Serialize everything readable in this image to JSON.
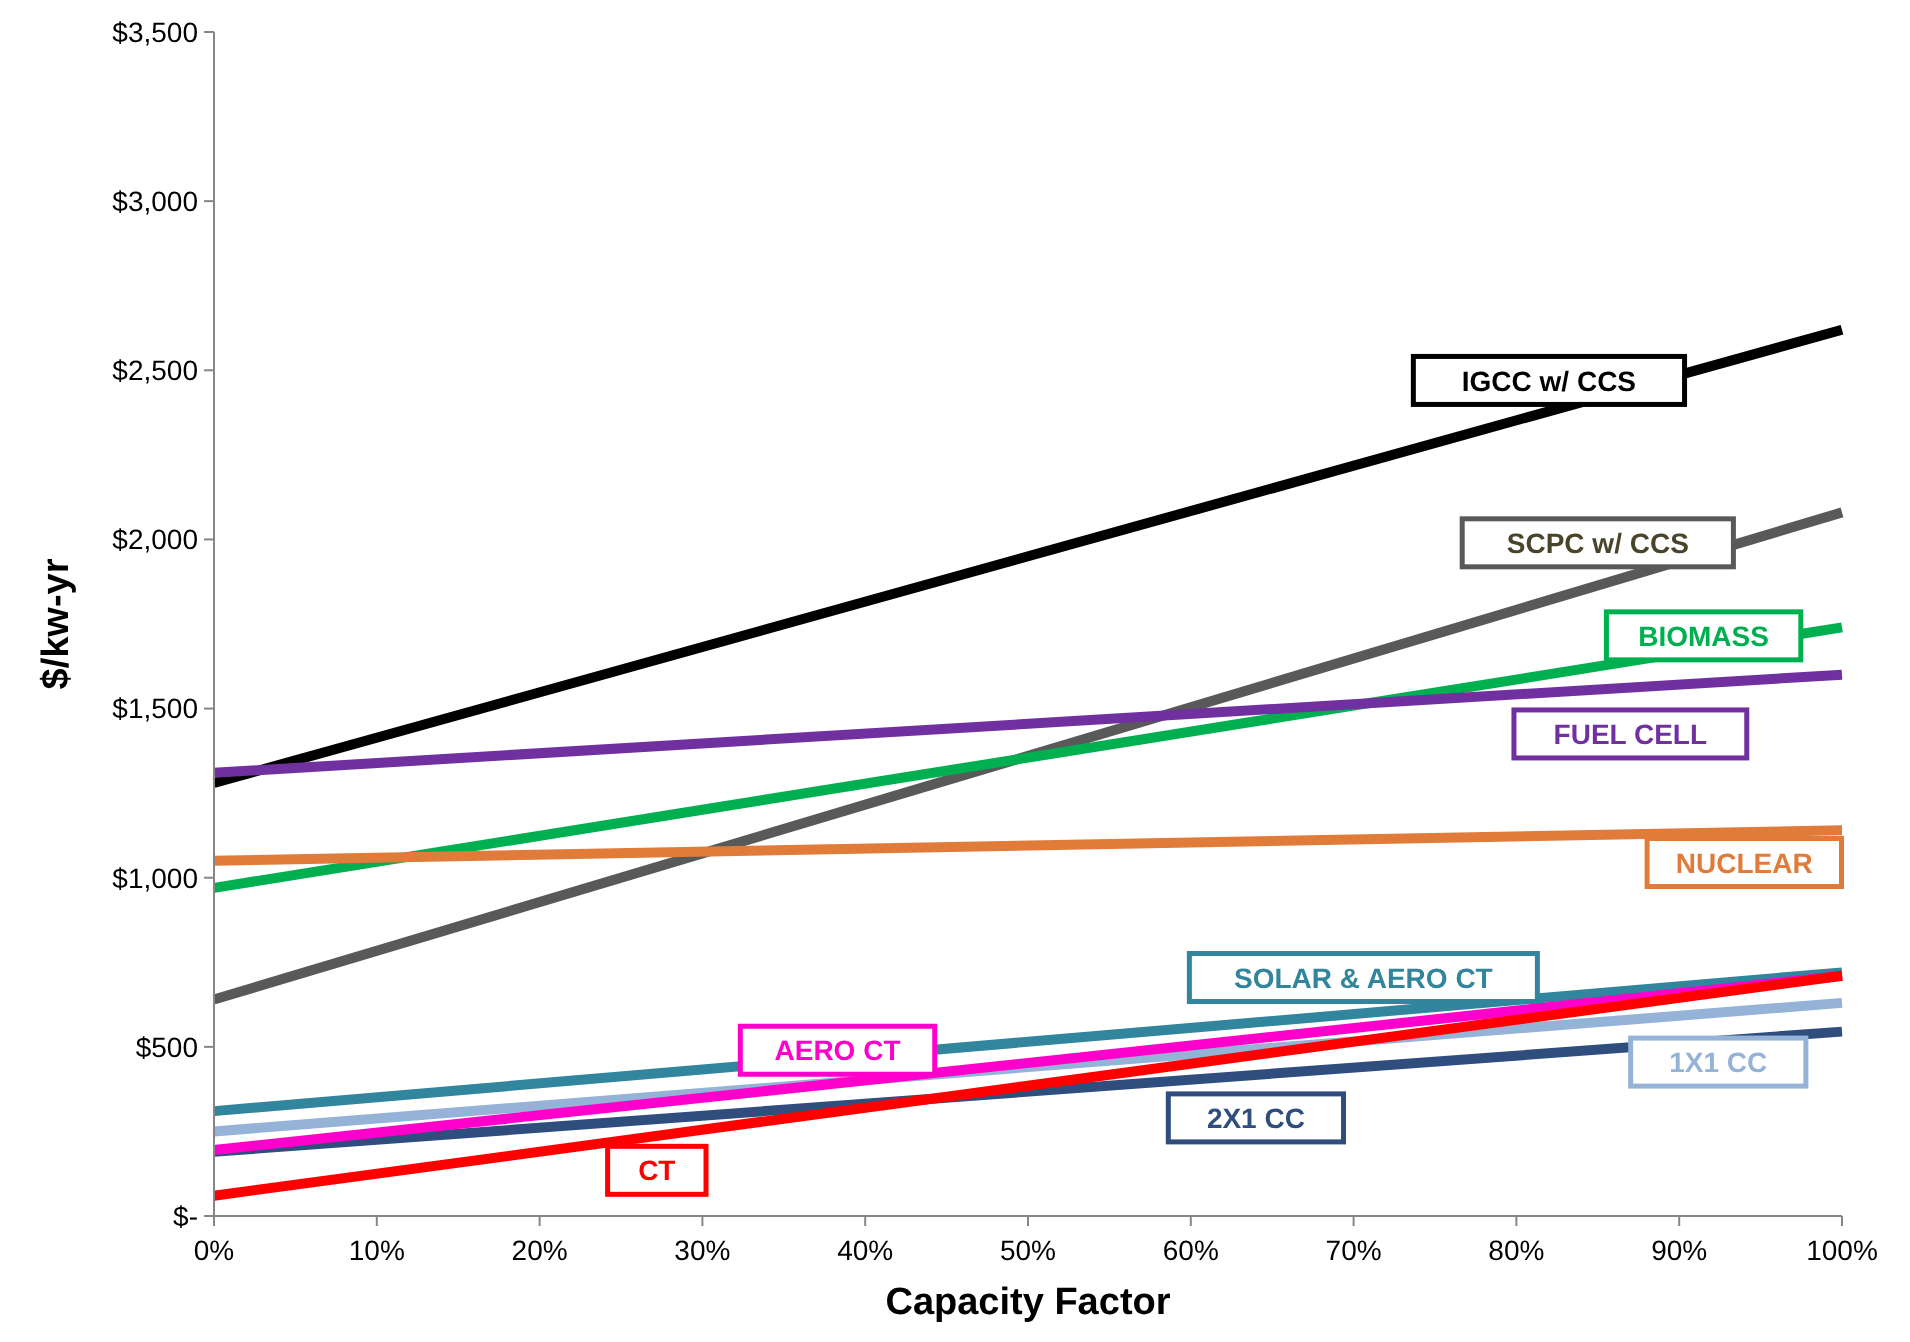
{
  "chart_data": {
    "type": "line",
    "xlabel": "Capacity Factor",
    "ylabel": "$/kw-yr",
    "x": [
      0,
      100
    ],
    "xlim": [
      0,
      100
    ],
    "xticks": [
      {
        "value": 0,
        "label": "0%"
      },
      {
        "value": 10,
        "label": "10%"
      },
      {
        "value": 20,
        "label": "20%"
      },
      {
        "value": 30,
        "label": "30%"
      },
      {
        "value": 40,
        "label": "40%"
      },
      {
        "value": 50,
        "label": "50%"
      },
      {
        "value": 60,
        "label": "60%"
      },
      {
        "value": 70,
        "label": "70%"
      },
      {
        "value": 80,
        "label": "80%"
      },
      {
        "value": 90,
        "label": "90%"
      },
      {
        "value": 100,
        "label": "100%"
      }
    ],
    "ylim": [
      0,
      3500
    ],
    "yticks": [
      {
        "value": 0,
        "label": "$-"
      },
      {
        "value": 500,
        "label": "$500"
      },
      {
        "value": 1000,
        "label": "$1,000"
      },
      {
        "value": 1500,
        "label": "$1,500"
      },
      {
        "value": 2000,
        "label": "$2,000"
      },
      {
        "value": 2500,
        "label": "$2,500"
      },
      {
        "value": 3000,
        "label": "$3,000"
      },
      {
        "value": 3500,
        "label": "$3,500"
      }
    ],
    "grid": false,
    "marker": "none",
    "line_style": "solid",
    "series": [
      {
        "name": "IGCC w/ CCS",
        "color": "#000000",
        "values": [
          1280,
          2620
        ]
      },
      {
        "name": "SCPC w/ CCS",
        "color": "#595959",
        "values": [
          640,
          2080
        ]
      },
      {
        "name": "BIOMASS",
        "color": "#00b050",
        "values": [
          970,
          1740
        ]
      },
      {
        "name": "FUEL CELL",
        "color": "#7030a0",
        "values": [
          1310,
          1600
        ]
      },
      {
        "name": "NUCLEAR",
        "color": "#e07b39",
        "values": [
          1050,
          1140
        ]
      },
      {
        "name": "SOLAR & AERO CT",
        "color": "#31859c",
        "values": [
          310,
          720
        ]
      },
      {
        "name": "1X1 CC",
        "color": "#95b3d7",
        "values": [
          250,
          630
        ]
      },
      {
        "name": "2X1 CC",
        "color": "#2f4e7e",
        "values": [
          190,
          545
        ]
      },
      {
        "name": "AERO CT",
        "color": "#ff00cc",
        "values": [
          195,
          710
        ]
      },
      {
        "name": "CT",
        "color": "#ff0000",
        "values": [
          60,
          710
        ]
      }
    ]
  }
}
